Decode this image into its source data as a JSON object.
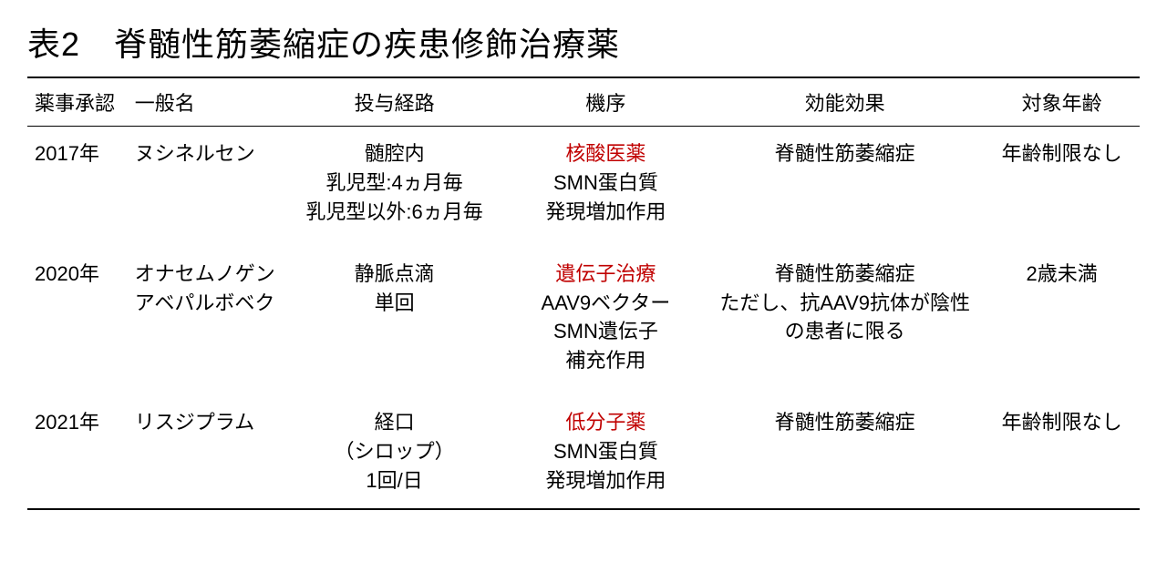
{
  "title": "表2　脊髄性筋萎縮症の疾患修飾治療薬",
  "columns": {
    "approval": "薬事承認",
    "name": "一般名",
    "route": "投与経路",
    "mechanism": "機序",
    "effect": "効能効果",
    "age": "対象年齢"
  },
  "rows": [
    {
      "approval": "2017年",
      "name": "ヌシネルセン",
      "route_l1": "髄腔内",
      "route_l2": "乳児型:4ヵ月毎",
      "route_l3": "乳児型以外:6ヵ月毎",
      "mech_red": "核酸医薬",
      "mech_l2": "SMN蛋白質",
      "mech_l3": "発現増加作用",
      "effect_l1": "脊髄性筋萎縮症",
      "effect_l2": "",
      "effect_l3": "",
      "age": "年齢制限なし"
    },
    {
      "approval": "2020年",
      "name_l1": "オナセムノゲン",
      "name_l2": "アベパルボベク",
      "route_l1": "静脈点滴",
      "route_l2": "単回",
      "route_l3": "",
      "mech_red": "遺伝子治療",
      "mech_l2": "AAV9ベクター",
      "mech_l3": "SMN遺伝子",
      "mech_l4": "補充作用",
      "effect_l1": "脊髄性筋萎縮症",
      "effect_l2": "ただし、抗AAV9抗体が陰性",
      "effect_l3": "の患者に限る",
      "age": "2歳未満"
    },
    {
      "approval": "2021年",
      "name": "リスジプラム",
      "route_l1": "経口",
      "route_l2": "（シロップ）",
      "route_l3": "1回/日",
      "mech_red": "低分子薬",
      "mech_l2": "SMN蛋白質",
      "mech_l3": "発現増加作用",
      "effect_l1": "脊髄性筋萎縮症",
      "effect_l2": "",
      "effect_l3": "",
      "age": "年齢制限なし"
    }
  ],
  "colors": {
    "text": "#000000",
    "highlight": "#c00000",
    "background": "#ffffff",
    "border": "#000000"
  }
}
